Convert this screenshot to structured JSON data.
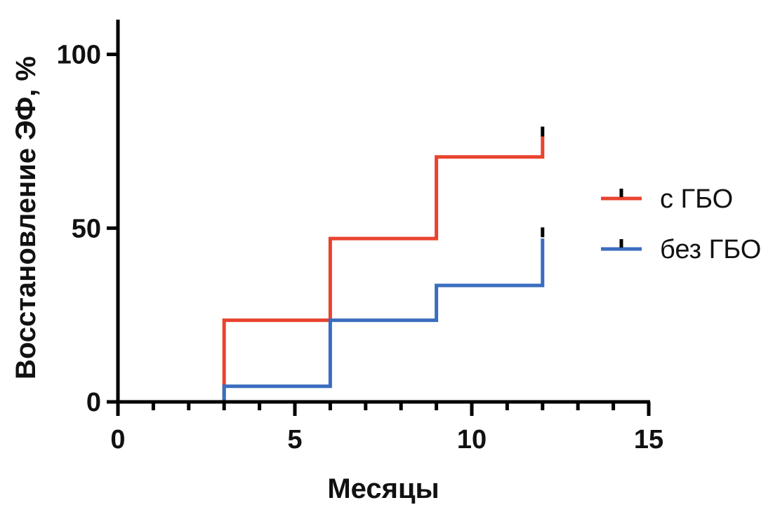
{
  "chart_data": {
    "type": "line",
    "step": true,
    "title": "",
    "xlabel": "Месяцы",
    "ylabel": "Восстановление ЭФ, %",
    "xlim": [
      0,
      15
    ],
    "ylim": [
      0,
      110
    ],
    "xticks": [
      0,
      5,
      10,
      15
    ],
    "xtick_labels": [
      "0",
      "5",
      "10",
      "15"
    ],
    "x_minor_step": 1,
    "yticks": [
      0,
      50,
      100
    ],
    "ytick_labels": [
      "0",
      "50",
      "100"
    ],
    "grid": false,
    "legend_position": "right",
    "series": [
      {
        "name": "с ГБО",
        "color": "#e8432f",
        "x": [
          0,
          3,
          6,
          9,
          12
        ],
        "y": [
          0,
          23.5,
          47,
          70.5,
          76.5
        ],
        "censored_x": 12,
        "censored_y": 78
      },
      {
        "name": "без ГБО",
        "color": "#3a6dbf",
        "x": [
          0,
          3,
          6,
          9,
          12
        ],
        "y": [
          0,
          4.5,
          23.5,
          33.5,
          47
        ],
        "censored_x": 12,
        "censored_y": 49
      }
    ]
  }
}
